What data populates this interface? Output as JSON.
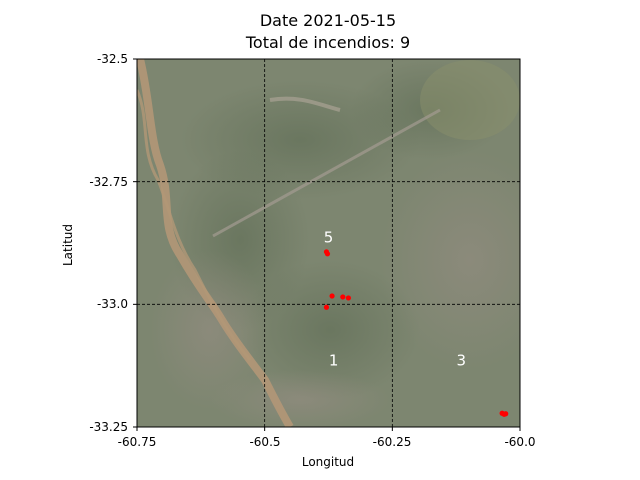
{
  "chart_data": {
    "type": "scatter",
    "title_line1": "Date 2021-05-15",
    "title_line2": "Total de incendios: 9",
    "xlabel": "Longitud",
    "ylabel": "Latitud",
    "xlim": [
      -60.75,
      -60.0
    ],
    "ylim": [
      -33.25,
      -32.5
    ],
    "x_ticks": [
      -60.75,
      -60.5,
      -60.25,
      -60.0
    ],
    "x_tick_labels": [
      "-60.75",
      "-60.5",
      "-60.25",
      "-60.0"
    ],
    "y_ticks": [
      -32.5,
      -32.75,
      -33.0,
      -33.25
    ],
    "y_tick_labels": [
      "-32.5",
      "-32.75",
      "-33.0",
      "-33.25"
    ],
    "grid": true,
    "grid_style": "dashed",
    "point_color": "#ff0000",
    "points": [
      {
        "lon": -60.379,
        "lat": -32.893
      },
      {
        "lon": -60.377,
        "lat": -32.897
      },
      {
        "lon": -60.368,
        "lat": -32.983
      },
      {
        "lon": -60.347,
        "lat": -32.985
      },
      {
        "lon": -60.336,
        "lat": -32.987
      },
      {
        "lon": -60.379,
        "lat": -33.006
      },
      {
        "lon": -60.035,
        "lat": -33.222
      },
      {
        "lon": -60.031,
        "lat": -33.224
      },
      {
        "lon": -60.028,
        "lat": -33.223
      }
    ],
    "cell_labels": [
      {
        "text": "5",
        "lon": -60.375,
        "lat": -32.865
      },
      {
        "text": "1",
        "lon": -60.365,
        "lat": -33.115
      },
      {
        "text": "3",
        "lon": -60.115,
        "lat": -33.115
      }
    ]
  }
}
